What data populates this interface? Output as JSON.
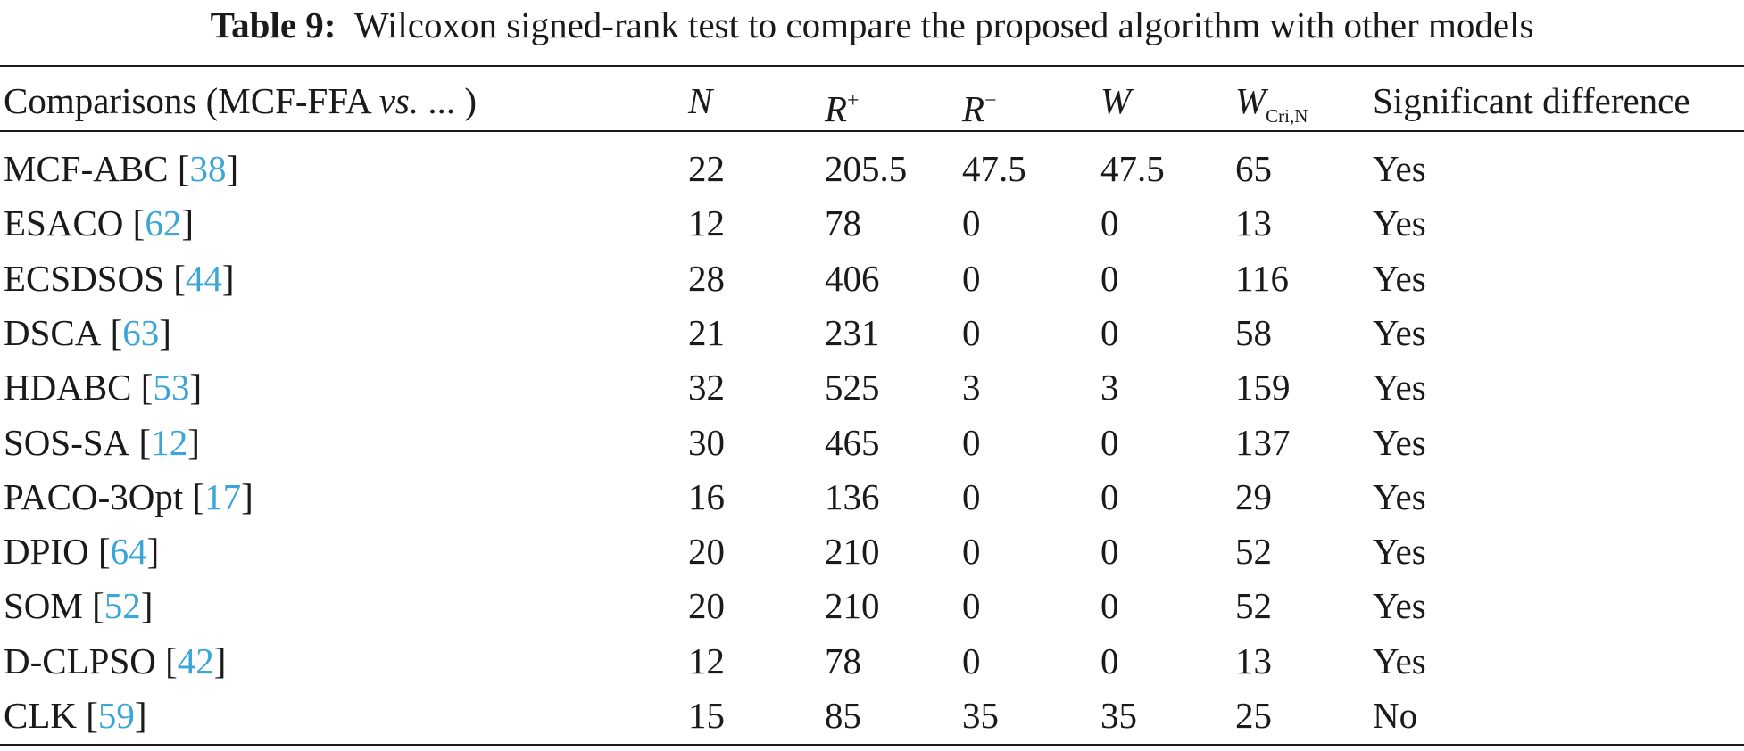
{
  "caption": {
    "label": "Table 9:",
    "text": "Wilcoxon signed-rank test to compare the proposed algorithm with other models"
  },
  "table": {
    "headers": {
      "comparisons": {
        "prefix": "Comparisons (MCF-FFA ",
        "vs": "vs.",
        "suffix": " ... )"
      },
      "n": "N",
      "r_plus": {
        "base": "R",
        "sup": "+"
      },
      "r_minus": {
        "base": "R",
        "sup": "−"
      },
      "w": "W",
      "w_cri": {
        "base": "W",
        "sub": "Cri,N"
      },
      "significant": "Significant difference"
    },
    "rows": [
      {
        "model": "MCF-ABC",
        "ref": "38",
        "n": "22",
        "r_plus": "205.5",
        "r_minus": "47.5",
        "w": "47.5",
        "w_cri": "65",
        "sig": "Yes"
      },
      {
        "model": "ESACO",
        "ref": "62",
        "n": "12",
        "r_plus": "78",
        "r_minus": "0",
        "w": "0",
        "w_cri": "13",
        "sig": "Yes"
      },
      {
        "model": "ECSDSOS",
        "ref": "44",
        "n": "28",
        "r_plus": "406",
        "r_minus": "0",
        "w": "0",
        "w_cri": "116",
        "sig": "Yes"
      },
      {
        "model": "DSCA",
        "ref": "63",
        "n": "21",
        "r_plus": "231",
        "r_minus": "0",
        "w": "0",
        "w_cri": "58",
        "sig": "Yes"
      },
      {
        "model": "HDABC",
        "ref": "53",
        "n": "32",
        "r_plus": "525",
        "r_minus": "3",
        "w": "3",
        "w_cri": "159",
        "sig": "Yes"
      },
      {
        "model": "SOS-SA",
        "ref": "12",
        "n": "30",
        "r_plus": "465",
        "r_minus": "0",
        "w": "0",
        "w_cri": "137",
        "sig": "Yes"
      },
      {
        "model": "PACO-3Opt",
        "ref": "17",
        "n": "16",
        "r_plus": "136",
        "r_minus": "0",
        "w": "0",
        "w_cri": "29",
        "sig": "Yes"
      },
      {
        "model": "DPIO",
        "ref": "64",
        "n": "20",
        "r_plus": "210",
        "r_minus": "0",
        "w": "0",
        "w_cri": "52",
        "sig": "Yes"
      },
      {
        "model": "SOM",
        "ref": "52",
        "n": "20",
        "r_plus": "210",
        "r_minus": "0",
        "w": "0",
        "w_cri": "52",
        "sig": "Yes"
      },
      {
        "model": "D-CLPSO",
        "ref": "42",
        "n": "12",
        "r_plus": "78",
        "r_minus": "0",
        "w": "0",
        "w_cri": "13",
        "sig": "Yes"
      },
      {
        "model": "CLK",
        "ref": "59",
        "n": "15",
        "r_plus": "85",
        "r_minus": "35",
        "w": "35",
        "w_cri": "25",
        "sig": "No"
      }
    ]
  }
}
